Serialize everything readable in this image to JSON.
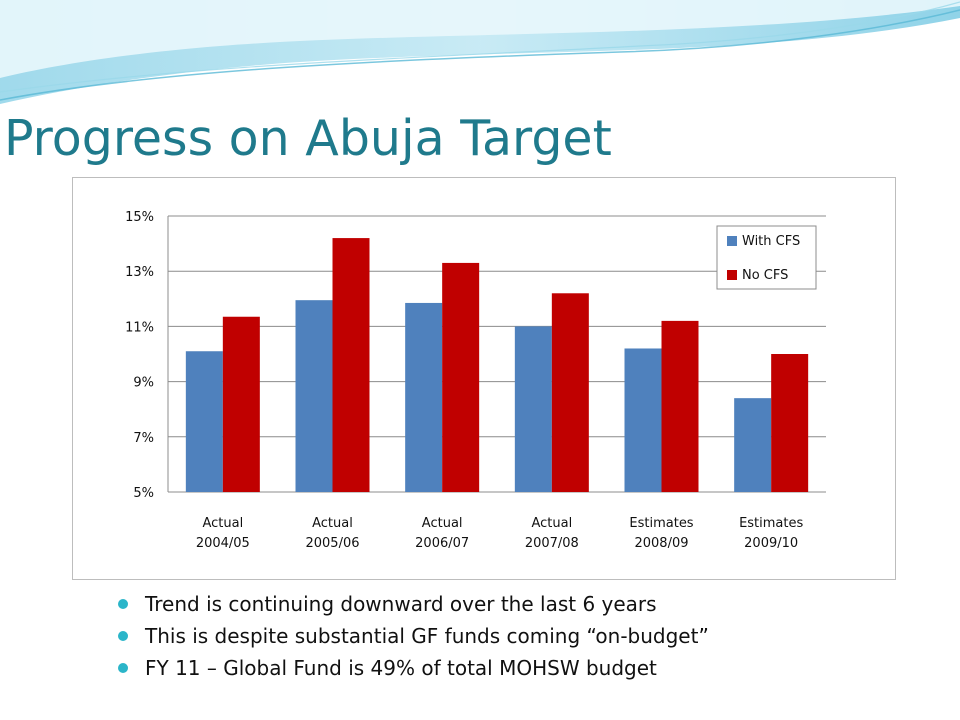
{
  "slide": {
    "title": "Progress on Abuja Target",
    "bullets": [
      "Trend is continuing downward over the last 6 years",
      "This is despite substantial GF funds coming “on-budget”",
      "FY 11 – Global Fund is 49% of total MOHSW budget"
    ]
  },
  "colors": {
    "title": "#1f7a8c",
    "bullet": "#2bb5c9",
    "with_cfs": "#4f81bd",
    "no_cfs": "#c00000"
  },
  "chart_data": {
    "type": "bar",
    "categories": [
      [
        "Actual",
        "2004/05"
      ],
      [
        "Actual",
        "2005/06"
      ],
      [
        "Actual",
        "2006/07"
      ],
      [
        "Actual",
        "2007/08"
      ],
      [
        "Estimates",
        "2008/09"
      ],
      [
        "Estimates",
        "2009/10"
      ]
    ],
    "series": [
      {
        "name": "With CFS",
        "values": [
          10.1,
          11.95,
          11.85,
          11.0,
          10.2,
          8.4
        ]
      },
      {
        "name": "No CFS",
        "values": [
          11.35,
          14.2,
          13.3,
          12.2,
          11.2,
          10.0
        ]
      }
    ],
    "ylim": [
      5,
      15
    ],
    "yticks": [
      5,
      7,
      9,
      11,
      13,
      15
    ],
    "ytick_labels": [
      "5%",
      "7%",
      "9%",
      "11%",
      "13%",
      "15%"
    ],
    "grid": true,
    "legend": "top-right",
    "title": "",
    "xlabel": "",
    "ylabel": ""
  }
}
